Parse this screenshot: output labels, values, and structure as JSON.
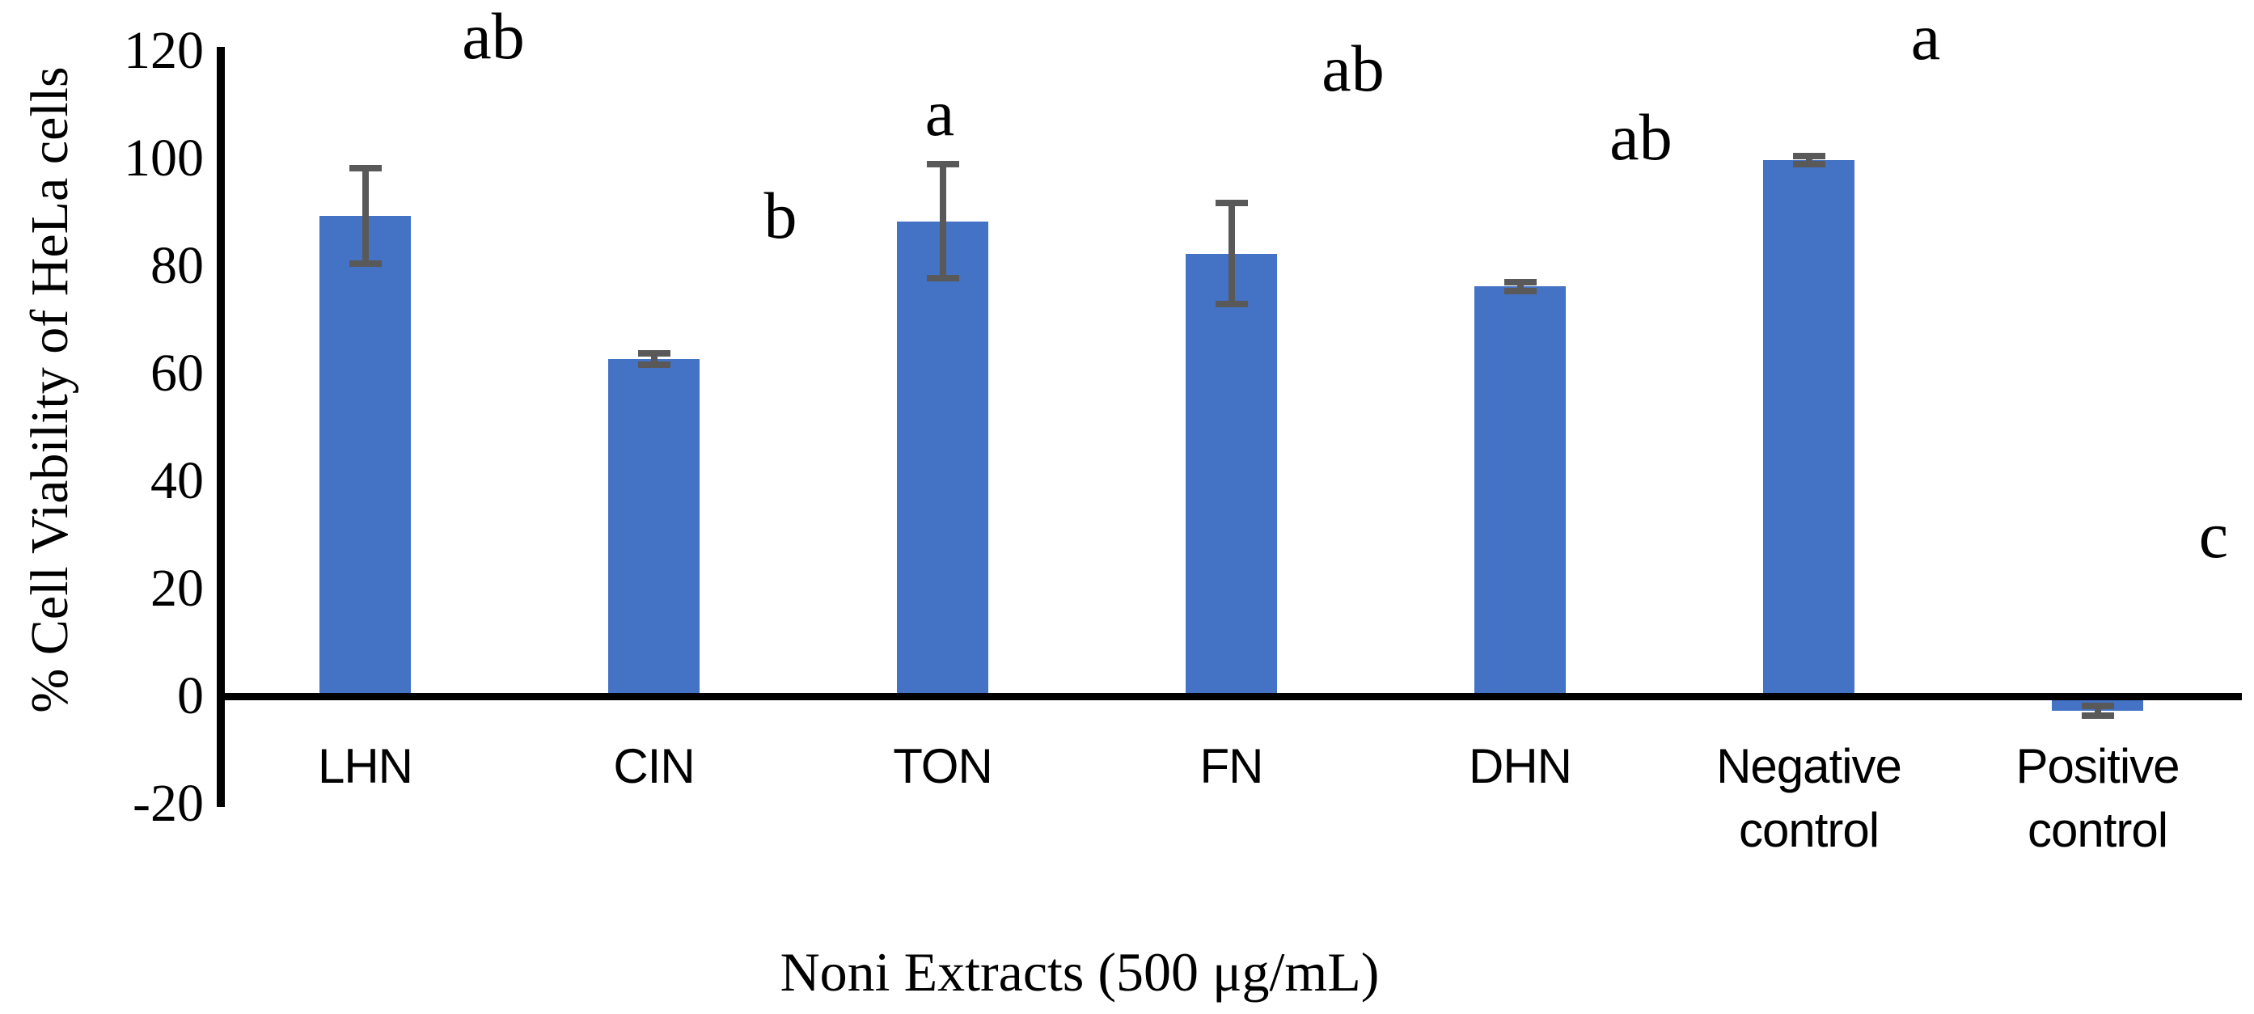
{
  "figure": {
    "background_color": "#ffffff",
    "y_axis_title": "% Cell Viability of HeLa cells",
    "x_axis_title": "Noni Extracts (500 μg/mL)"
  },
  "chart_data": {
    "type": "bar",
    "title": "",
    "xlabel": "Noni Extracts (500 μg/mL)",
    "ylabel": "% Cell Viability of HeLa cells",
    "categories": [
      "LHN",
      "CIN",
      "TON",
      "FN",
      "DHN",
      "Negative control",
      "Positive control"
    ],
    "values": [
      89.3,
      62.7,
      88.3,
      82.3,
      76.2,
      99.7,
      -2.7
    ],
    "error_bars": [
      8.9,
      1.1,
      10.6,
      9.4,
      0.8,
      0.7,
      0.9
    ],
    "significance_letters": [
      "ab",
      "b",
      "a",
      "ab",
      "ab",
      "a",
      "c"
    ],
    "ylim": [
      -20,
      120
    ],
    "y_ticks": [
      120,
      100,
      80,
      60,
      40,
      20,
      0,
      -20
    ],
    "grid": false,
    "legend": false,
    "bar_color": "#4472C4",
    "error_bar_color": "#595959",
    "axis_color": "#000000",
    "text_color": "#000000"
  }
}
